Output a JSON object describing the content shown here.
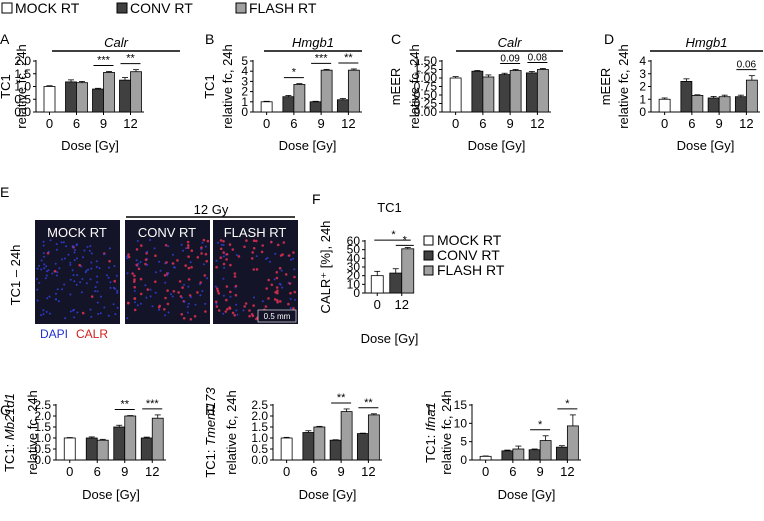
{
  "figure": {
    "legend_top": [
      {
        "label": "MOCK RT",
        "color": "#ffffff"
      },
      {
        "label": "CONV RT",
        "color": "#404040"
      },
      {
        "label": "FLASH RT",
        "color": "#a0a0a0"
      }
    ],
    "dose_label": "12 Gy",
    "image_labels": [
      "MOCK RT",
      "CONV RT",
      "FLASH RT"
    ],
    "image_ylabel": "TC1 – 24h",
    "stain_dapi": "DAPI",
    "stain_calr": "CALR",
    "scale_bar": "0.5 mm",
    "colors": {
      "mock": "#ffffff",
      "conv": "#404040",
      "flash": "#a0a0a0",
      "dapi": "#2030d0",
      "calr": "#d02020"
    }
  },
  "chart_data": [
    {
      "panel": "A",
      "type": "bar",
      "title": "Calr",
      "ylabel": [
        "TC1",
        "relative fc, 24h"
      ],
      "xlabel": "Dose [Gy]",
      "categories": [
        "0",
        "6",
        "9",
        "12"
      ],
      "ylim": [
        0,
        2.0
      ],
      "yticks": [
        0.0,
        0.5,
        1.0,
        1.5,
        2.0
      ],
      "series": [
        {
          "name": "MOCK RT",
          "values": [
            1.0,
            null,
            null,
            null
          ],
          "errors": [
            0.03,
            null,
            null,
            null
          ]
        },
        {
          "name": "CONV RT",
          "values": [
            null,
            1.18,
            0.9,
            1.25
          ],
          "errors": [
            null,
            0.08,
            0.03,
            0.1
          ]
        },
        {
          "name": "FLASH RT",
          "values": [
            null,
            1.15,
            1.55,
            1.58
          ],
          "errors": [
            null,
            0.05,
            0.04,
            0.08
          ]
        }
      ],
      "annotations": [
        {
          "category": "9",
          "text": "***"
        },
        {
          "category": "12",
          "text": "**"
        }
      ]
    },
    {
      "panel": "B",
      "type": "bar",
      "title": "Hmgb1",
      "ylabel": [
        "TC1",
        "relative fc, 24h"
      ],
      "xlabel": "Dose [Gy]",
      "categories": [
        "0",
        "6",
        "9",
        "12"
      ],
      "ylim": [
        0,
        5
      ],
      "yticks": [
        0,
        1,
        2,
        3,
        4,
        5
      ],
      "series": [
        {
          "name": "MOCK RT",
          "values": [
            1.0,
            null,
            null,
            null
          ],
          "errors": [
            0.05,
            null,
            null,
            null
          ]
        },
        {
          "name": "CONV RT",
          "values": [
            null,
            1.5,
            1.0,
            1.2
          ],
          "errors": [
            null,
            0.12,
            0.05,
            0.12
          ]
        },
        {
          "name": "FLASH RT",
          "values": [
            null,
            2.7,
            4.1,
            4.1
          ],
          "errors": [
            null,
            0.08,
            0.08,
            0.12
          ]
        }
      ],
      "annotations": [
        {
          "category": "6",
          "text": "*"
        },
        {
          "category": "9",
          "text": "***"
        },
        {
          "category": "12",
          "text": "**"
        }
      ]
    },
    {
      "panel": "C",
      "type": "bar",
      "title": "Calr",
      "ylabel": [
        "mEER",
        "relative fc, 24h"
      ],
      "xlabel": "Dose [Gy]",
      "categories": [
        "0",
        "6",
        "9",
        "12"
      ],
      "ylim": [
        0,
        1.5
      ],
      "yticks": [
        0.0,
        0.25,
        0.5,
        0.75,
        1.0,
        1.25,
        1.5
      ],
      "series": [
        {
          "name": "MOCK RT",
          "values": [
            1.0,
            null,
            null,
            null
          ],
          "errors": [
            0.04,
            null,
            null,
            null
          ]
        },
        {
          "name": "CONV RT",
          "values": [
            null,
            1.2,
            1.1,
            1.15
          ],
          "errors": [
            null,
            0.02,
            0.04,
            0.04
          ]
        },
        {
          "name": "FLASH RT",
          "values": [
            null,
            1.03,
            1.22,
            1.25
          ],
          "errors": [
            null,
            0.06,
            0.03,
            0.03
          ]
        }
      ],
      "annotations": [
        {
          "category": "9",
          "text": "0.09"
        },
        {
          "category": "12",
          "text": "0.08"
        }
      ]
    },
    {
      "panel": "D",
      "type": "bar",
      "title": "Hmgb1",
      "ylabel": [
        "mEER",
        "relative fc, 24h"
      ],
      "xlabel": "Dose [Gy]",
      "categories": [
        "0",
        "6",
        "9",
        "12"
      ],
      "ylim": [
        0,
        4
      ],
      "yticks": [
        0,
        1,
        2,
        3,
        4
      ],
      "series": [
        {
          "name": "MOCK RT",
          "values": [
            1.0,
            null,
            null,
            null
          ],
          "errors": [
            0.1,
            null,
            null,
            null
          ]
        },
        {
          "name": "CONV RT",
          "values": [
            null,
            2.4,
            1.1,
            1.2
          ],
          "errors": [
            null,
            0.2,
            0.12,
            0.12
          ]
        },
        {
          "name": "FLASH RT",
          "values": [
            null,
            1.3,
            1.2,
            2.5
          ],
          "errors": [
            null,
            0.05,
            0.12,
            0.35
          ]
        }
      ],
      "annotations": [
        {
          "category": "12",
          "text": "0.06"
        }
      ]
    },
    {
      "panel": "F",
      "type": "bar",
      "title": "TC1",
      "ylabel": [
        "CALR⁺ [%], 24h"
      ],
      "xlabel": "Dose [Gy]",
      "categories": [
        "0",
        "12"
      ],
      "ylim": [
        0,
        60
      ],
      "yticks": [
        0,
        10,
        20,
        30,
        40,
        50,
        60
      ],
      "series": [
        {
          "name": "MOCK RT",
          "values": [
            20,
            null
          ],
          "errors": [
            5,
            null
          ]
        },
        {
          "name": "CONV RT",
          "values": [
            null,
            23
          ],
          "errors": [
            null,
            5
          ]
        },
        {
          "name": "FLASH RT",
          "values": [
            null,
            51
          ],
          "errors": [
            null,
            1.5
          ]
        }
      ],
      "annotations": [
        {
          "text": "*"
        },
        {
          "text": "*"
        }
      ],
      "legend": [
        "MOCK RT",
        "CONV RT",
        "FLASH RT"
      ]
    },
    {
      "panel": "G",
      "type": "bar",
      "ylabel": [
        "TC1: Mb21d1",
        "relative fc, 24h"
      ],
      "xlabel": "Dose [Gy]",
      "categories": [
        "0",
        "6",
        "9",
        "12"
      ],
      "ylim": [
        0,
        2.5
      ],
      "yticks": [
        0.0,
        0.5,
        1.0,
        1.5,
        2.0,
        2.5
      ],
      "series": [
        {
          "name": "MOCK RT",
          "values": [
            1.0,
            null,
            null,
            null
          ],
          "errors": [
            0.02,
            null,
            null,
            null
          ]
        },
        {
          "name": "CONV RT",
          "values": [
            null,
            1.0,
            1.5,
            1.0
          ],
          "errors": [
            null,
            0.05,
            0.08,
            0.04
          ]
        },
        {
          "name": "FLASH RT",
          "values": [
            null,
            0.9,
            2.0,
            1.9
          ],
          "errors": [
            null,
            0.04,
            0.02,
            0.15
          ]
        }
      ],
      "annotations": [
        {
          "category": "9",
          "text": "**"
        },
        {
          "category": "12",
          "text": "***"
        }
      ]
    },
    {
      "panel": "H",
      "type": "bar",
      "ylabel": [
        "TC1: Tmem173",
        "relative fc, 24h"
      ],
      "xlabel": "Dose [Gy]",
      "categories": [
        "0",
        "6",
        "9",
        "12"
      ],
      "ylim": [
        0,
        2.5
      ],
      "yticks": [
        0.0,
        0.5,
        1.0,
        1.5,
        2.0,
        2.5
      ],
      "series": [
        {
          "name": "MOCK RT",
          "values": [
            1.0,
            null,
            null,
            null
          ],
          "errors": [
            0.03,
            null,
            null,
            null
          ]
        },
        {
          "name": "CONV RT",
          "values": [
            null,
            1.25,
            0.9,
            1.2
          ],
          "errors": [
            null,
            0.08,
            0.02,
            0.02
          ]
        },
        {
          "name": "FLASH RT",
          "values": [
            null,
            1.5,
            2.2,
            2.05
          ],
          "errors": [
            null,
            0.03,
            0.12,
            0.05
          ]
        }
      ],
      "annotations": [
        {
          "category": "9",
          "text": "**"
        },
        {
          "category": "12",
          "text": "**"
        }
      ]
    },
    {
      "panel": "I",
      "type": "bar",
      "ylabel": [
        "TC1: Ifna1",
        "relative fc, 24h"
      ],
      "xlabel": "Dose [Gy]",
      "categories": [
        "0",
        "6",
        "9",
        "12"
      ],
      "ylim": [
        0,
        15
      ],
      "yticks": [
        0,
        5,
        10,
        15
      ],
      "series": [
        {
          "name": "MOCK RT",
          "values": [
            1.0,
            null,
            null,
            null
          ],
          "errors": [
            0.1,
            null,
            null,
            null
          ]
        },
        {
          "name": "CONV RT",
          "values": [
            null,
            2.5,
            2.8,
            3.5
          ],
          "errors": [
            null,
            0.2,
            0.2,
            0.4
          ]
        },
        {
          "name": "FLASH RT",
          "values": [
            null,
            3.0,
            5.3,
            9.3
          ],
          "errors": [
            null,
            0.8,
            1.3,
            3.0
          ]
        }
      ],
      "annotations": [
        {
          "category": "9",
          "text": "*"
        },
        {
          "category": "12",
          "text": "*"
        }
      ]
    }
  ]
}
